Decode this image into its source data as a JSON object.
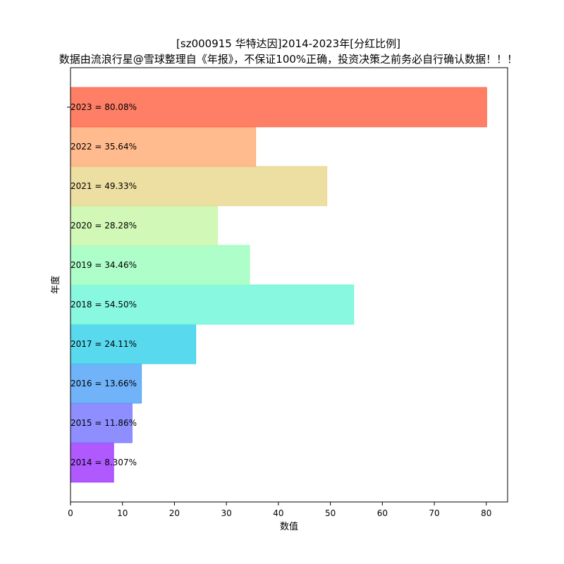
{
  "chart_data": {
    "type": "bar",
    "orientation": "horizontal",
    "title": "[sz000915 华特达因]2014-2023年[分红比例]",
    "subtitle": "数据由流浪行星@雪球整理自《年报》，不保证100%正确，投资决策之前务必自行确认数据！！！",
    "xlabel": "数值",
    "ylabel": "年度",
    "xlim": [
      0,
      84.1
    ],
    "xticks": [
      "0",
      "10",
      "20",
      "30",
      "40",
      "50",
      "60",
      "70",
      "80"
    ],
    "grid": false,
    "categories": [
      "2014",
      "2015",
      "2016",
      "2017",
      "2018",
      "2019",
      "2020",
      "2021",
      "2022",
      "2023"
    ],
    "values": [
      8.307,
      11.86,
      13.66,
      24.11,
      54.5,
      34.46,
      28.28,
      49.33,
      35.64,
      80.08
    ],
    "labels": [
      "2014 = 8.307%",
      "2015 = 11.86%",
      "2016 = 13.66%",
      "2017 = 24.11%",
      "2018 = 54.50%",
      "2019 = 34.46%",
      "2020 = 28.28%",
      "2021 = 49.33%",
      "2022 = 35.64%",
      "2023 = 80.08%"
    ],
    "colors": [
      "#9b30ff",
      "#7272ff",
      "#4ca0f8",
      "#30d0ea",
      "#6af6d8",
      "#98feba",
      "#c6f6a4",
      "#e8d68a",
      "#ffaa70",
      "#ff5e40"
    ]
  }
}
